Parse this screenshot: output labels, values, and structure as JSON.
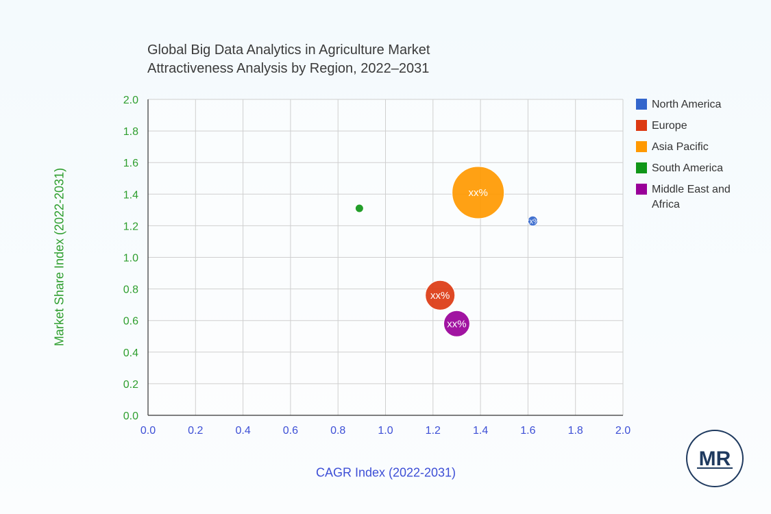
{
  "chart_data": {
    "type": "bubble",
    "title_lines": [
      "Global Big Data Analytics in Agriculture Market",
      "Attractiveness Analysis by Region, 2022–2031"
    ],
    "xlabel": "CAGR Index (2022-2031)",
    "ylabel": "Market Share Index (2022-2031)",
    "xlim": [
      0.0,
      2.0
    ],
    "ylim": [
      0.0,
      2.0
    ],
    "xticks": [
      "0.0",
      "0.2",
      "0.4",
      "0.6",
      "0.8",
      "1.0",
      "1.2",
      "1.4",
      "1.6",
      "1.8",
      "2.0"
    ],
    "yticks": [
      "0.0",
      "0.2",
      "0.4",
      "0.6",
      "0.8",
      "1.0",
      "1.2",
      "1.4",
      "1.6",
      "1.8",
      "2.0"
    ],
    "grid": true,
    "legend_position": "right",
    "series": [
      {
        "name": "North America",
        "color": "#3366cc",
        "x": 1.62,
        "y": 1.23,
        "size": 1,
        "label": "xx%"
      },
      {
        "name": "Europe",
        "color": "#dc3912",
        "x": 1.23,
        "y": 0.76,
        "size": 9,
        "label": "xx%"
      },
      {
        "name": "Asia Pacific",
        "color": "#ff9900",
        "x": 1.39,
        "y": 1.41,
        "size": 28,
        "label": "xx%"
      },
      {
        "name": "South America",
        "color": "#109618",
        "x": 0.89,
        "y": 1.31,
        "size": 0.3,
        "label": ""
      },
      {
        "name": "Middle East and Africa",
        "color": "#990099",
        "x": 1.3,
        "y": 0.58,
        "size": 7,
        "label": "xx%"
      }
    ]
  },
  "logo": {
    "text": "MR"
  }
}
